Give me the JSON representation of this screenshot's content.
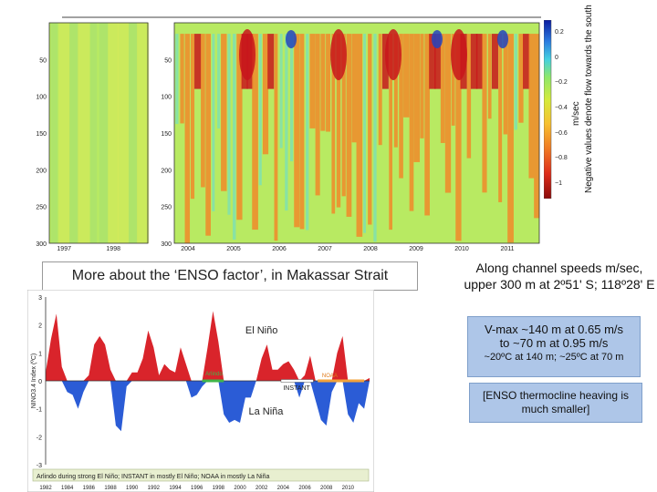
{
  "colorbar": {
    "unit": "m/sec",
    "note": "Negative values denote flow towards the south",
    "ticks": [
      "0.2",
      "0",
      "−0.2",
      "−0.4",
      "−0.6",
      "−0.8",
      "−1"
    ]
  },
  "captions": {
    "left": "More about the ‘ENSO factor’, in Makassar Strait",
    "right": "Along channel speeds m/sec, upper 300 m at 2º51' S; 118º28' E",
    "vmax_line1": "V-max ~140 m at 0.65 m/s",
    "vmax_line2": "to ~70 m at 0.95 m/s",
    "vmax_line3": "~20ºC at 140 m; ~25ºC at 70 m",
    "enso_note": "[ENSO thermocline heaving is much smaller]"
  },
  "colors": {
    "elnino": "#d9242b",
    "lanina": "#2b5cd6",
    "fill_green": "#b8ea62",
    "fill_orange": "#f08a2a",
    "fill_red": "#c8151b",
    "fill_blue": "#2244c0",
    "panel_bg": "#eef2ee",
    "box_bg": "#aec6e8"
  },
  "chart_data": [
    {
      "type": "heatmap",
      "description_panels": [
        "1997–1998",
        "2004–2011"
      ],
      "y_ticks": [
        "50",
        "100",
        "150",
        "200",
        "250",
        "300"
      ],
      "panel1_x_ticks": [
        "1997",
        "1998"
      ],
      "panel2_x_ticks": [
        "2004",
        "2005",
        "2006",
        "2007",
        "2008",
        "2009",
        "2010",
        "2011"
      ],
      "ylim": [
        0,
        300
      ],
      "zlim": [
        -1,
        0.2
      ]
    },
    {
      "type": "area",
      "xlabel": "",
      "ylabel": "NINO3.4 Index (ºC)",
      "x_ticks": [
        "1982",
        "1984",
        "1986",
        "1988",
        "1990",
        "1992",
        "1994",
        "1996",
        "1998",
        "2000",
        "2002",
        "2004",
        "2006",
        "2008",
        "2010"
      ],
      "y_ticks": [
        "3",
        "2",
        "1",
        "0",
        "-1",
        "-2",
        "-3"
      ],
      "ylim": [
        -3,
        3
      ],
      "xlim": [
        1982,
        2012
      ],
      "labels": {
        "elnino": "El Niño",
        "lanina": "La Niña",
        "arlindo": "Arlindo",
        "instant": "INSTANT",
        "noaa": "NOAA",
        "footer": "Arlindo during strong El Niño; INSTANT in mostly El Niño; NOAA in mostly La Niña"
      },
      "series": [
        {
          "x": [
            1982,
            1982.5,
            1983,
            1983.5,
            1984,
            1984.5,
            1985,
            1985.5,
            1986,
            1986.5,
            1987,
            1987.5,
            1988,
            1988.5,
            1989,
            1989.5,
            1990,
            1990.5,
            1991,
            1991.5,
            1992,
            1992.5,
            1993,
            1993.5,
            1994,
            1994.5,
            1995,
            1995.5,
            1996,
            1996.5,
            1997,
            1997.5,
            1998,
            1998.5,
            1999,
            1999.5,
            2000,
            2000.5,
            2001,
            2001.5,
            2002,
            2002.5,
            2003,
            2003.5,
            2004,
            2004.5,
            2005,
            2005.5,
            2006,
            2006.5,
            2007,
            2007.5,
            2008,
            2008.5,
            2009,
            2009.5,
            2010,
            2010.5,
            2011,
            2011.5,
            2012
          ],
          "values": [
            0.3,
            1.5,
            2.4,
            0.5,
            -0.4,
            -0.5,
            -1.0,
            -0.4,
            0.2,
            1.3,
            1.6,
            1.3,
            0.4,
            -1.6,
            -1.8,
            -0.2,
            0.3,
            0.3,
            0.8,
            1.8,
            1.2,
            0.2,
            0.6,
            0.4,
            0.3,
            1.2,
            0.6,
            -0.6,
            -0.5,
            -0.2,
            1.2,
            2.5,
            1.4,
            -1.2,
            -1.5,
            -1.4,
            -1.5,
            -0.6,
            -0.6,
            0.0,
            0.8,
            1.3,
            0.4,
            0.4,
            0.6,
            0.7,
            0.4,
            -0.6,
            0.2,
            0.9,
            -0.7,
            -1.4,
            -1.6,
            -0.4,
            1.0,
            1.6,
            -1.2,
            -1.5,
            -0.8,
            -1.0,
            0.1
          ]
        }
      ]
    }
  ]
}
